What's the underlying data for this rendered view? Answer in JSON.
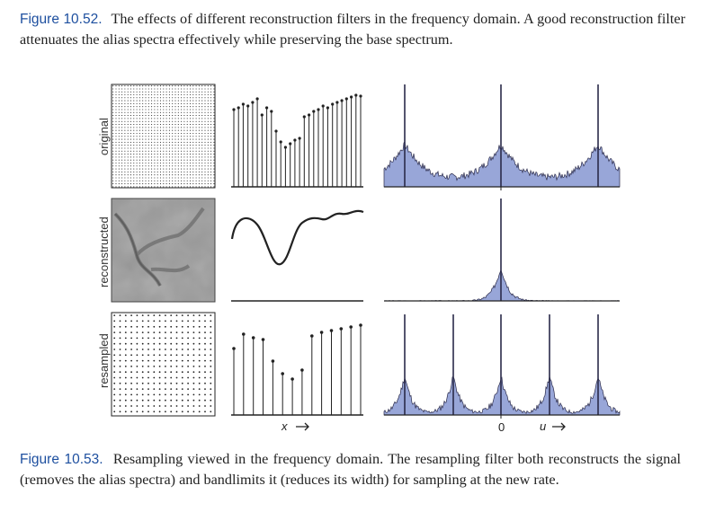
{
  "captions": {
    "top": {
      "label": "Figure 10.52.",
      "text": "The effects of different reconstruction filters in the frequency domain. A good reconstruction filter attenuates the alias spectra effectively while preserving the base spectrum."
    },
    "bottom": {
      "label": "Figure 10.53.",
      "text": "Resampling viewed in the frequency domain. The resampling filter both reconstructs the signal (removes the alias spectra) and bandlimits it (reduces its width) for sampling at the new rate."
    }
  },
  "rows": {
    "original": "original",
    "reconstructed": "reconstructed",
    "resampled": "resampled"
  },
  "axes": {
    "x_label": "x",
    "u_label": "u",
    "zero_label": "0"
  },
  "colors": {
    "spectrum_fill": "#98a6d8",
    "spectrum_stroke": "#2a2a4a",
    "ink": "#222222",
    "caption_label": "#1d4f9f"
  }
}
